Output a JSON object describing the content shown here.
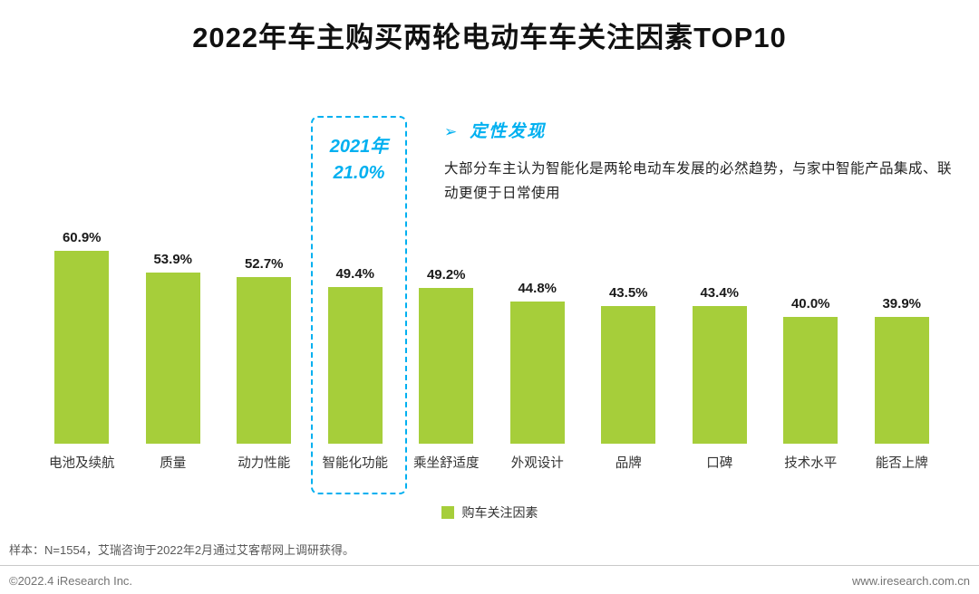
{
  "title": "2022年车主购买两轮电动车车关注因素TOP10",
  "chart_data": {
    "type": "bar",
    "title": "2022年车主购买两轮电动车车关注因素TOP10",
    "categories": [
      "电池及续航",
      "质量",
      "动力性能",
      "智能化功能",
      "乘坐舒适度",
      "外观设计",
      "品牌",
      "口碑",
      "技术水平",
      "能否上牌"
    ],
    "values": [
      60.9,
      53.9,
      52.7,
      49.4,
      49.2,
      44.8,
      43.5,
      43.4,
      40.0,
      39.9
    ],
    "value_labels": [
      "60.9%",
      "53.9%",
      "52.7%",
      "49.4%",
      "49.2%",
      "44.8%",
      "43.5%",
      "43.4%",
      "40.0%",
      "39.9%"
    ],
    "unit": "%",
    "ylim": [
      0,
      65
    ],
    "grid": false,
    "bar_color": "#a6ce3a",
    "legend_position": "bottom",
    "highlight": {
      "index": 3,
      "category": "智能化功能",
      "note_line1": "2021年",
      "note_line2": "21.0%",
      "box_color": "#00b0f0"
    }
  },
  "insight": {
    "marker": "➢",
    "title": "定性发现",
    "body": "大部分车主认为智能化是两轮电动车发展的必然趋势，与家中智能产品集成、联动更便于日常使用"
  },
  "legend": {
    "swatch_color": "#a6ce3a",
    "label": "购车关注因素"
  },
  "footnote": "样本：N=1554，艾瑞咨询于2022年2月通过艾客帮网上调研获得。",
  "footer": {
    "left": "©2022.4 iResearch Inc.",
    "right": "www.iresearch.com.cn"
  },
  "colors": {
    "bar": "#a6ce3a",
    "accent": "#00b0f0",
    "text": "#1a1a1a"
  }
}
